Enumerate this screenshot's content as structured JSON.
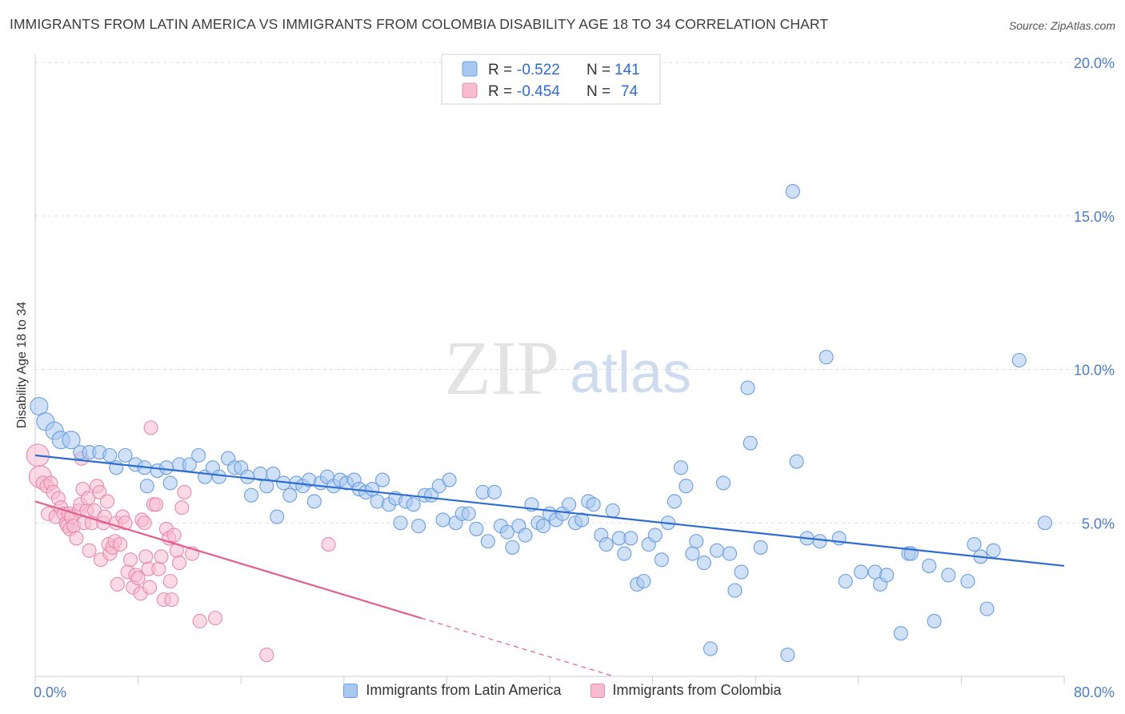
{
  "header": {
    "title": "IMMIGRANTS FROM LATIN AMERICA VS IMMIGRANTS FROM COLOMBIA DISABILITY AGE 18 TO 34 CORRELATION CHART",
    "source": "Source: ZipAtlas.com"
  },
  "watermark": {
    "zip": "ZIP",
    "atlas": "atlas"
  },
  "legend": {
    "rows": [
      {
        "r_label": "R =",
        "r_value": "-0.522",
        "n_label": "N =",
        "n_value": "141"
      },
      {
        "r_label": "R =",
        "r_value": "-0.454",
        "n_label": "N =",
        "n_value": "74"
      }
    ]
  },
  "colors": {
    "blue_fill": "#a9c8f0",
    "blue_stroke": "#6a9ee0",
    "blue_line": "#2f6cd0",
    "pink_fill": "#f7bcd0",
    "pink_stroke": "#e68aab",
    "pink_line": "#e0608a",
    "tick_text": "#4a7cc9",
    "grid": "#dddddd"
  },
  "chart_data": {
    "type": "scatter",
    "title": "IMMIGRANTS FROM LATIN AMERICA VS IMMIGRANTS FROM COLOMBIA DISABILITY AGE 18 TO 34 CORRELATION CHART",
    "xlabel": "",
    "ylabel": "Disability Age 18 to 34",
    "xlim": [
      0,
      80
    ],
    "ylim": [
      0,
      20
    ],
    "x_tick_labels": [
      "0.0%",
      "80.0%"
    ],
    "y_ticks": [
      5,
      10,
      15,
      20
    ],
    "y_tick_labels": [
      "5.0%",
      "10.0%",
      "15.0%",
      "20.0%"
    ],
    "grid": "horizontal dashed",
    "legend_position": "top-center",
    "series": [
      {
        "name": "Immigrants from Latin America",
        "color": "#a9c8f0",
        "R": -0.522,
        "N": 141,
        "trend": {
          "x": [
            0,
            80
          ],
          "y": [
            7.2,
            3.6
          ]
        },
        "points": [
          [
            0.3,
            8.8
          ],
          [
            0.8,
            8.3
          ],
          [
            1.5,
            8.0
          ],
          [
            2.0,
            7.7
          ],
          [
            2.8,
            7.7
          ],
          [
            3.5,
            7.3
          ],
          [
            4.2,
            7.3
          ],
          [
            5.0,
            7.3
          ],
          [
            5.8,
            7.2
          ],
          [
            6.3,
            6.8
          ],
          [
            7.0,
            7.2
          ],
          [
            7.8,
            6.9
          ],
          [
            8.5,
            6.8
          ],
          [
            8.7,
            6.2
          ],
          [
            9.5,
            6.7
          ],
          [
            10.2,
            6.8
          ],
          [
            10.5,
            6.3
          ],
          [
            11.2,
            6.9
          ],
          [
            12.0,
            6.9
          ],
          [
            12.7,
            7.2
          ],
          [
            13.2,
            6.5
          ],
          [
            13.8,
            6.8
          ],
          [
            14.3,
            6.5
          ],
          [
            15.0,
            7.1
          ],
          [
            15.5,
            6.8
          ],
          [
            16.0,
            6.8
          ],
          [
            16.5,
            6.5
          ],
          [
            16.8,
            5.9
          ],
          [
            17.5,
            6.6
          ],
          [
            18.0,
            6.2
          ],
          [
            18.5,
            6.6
          ],
          [
            18.8,
            5.2
          ],
          [
            19.3,
            6.3
          ],
          [
            19.8,
            5.9
          ],
          [
            20.3,
            6.3
          ],
          [
            20.8,
            6.2
          ],
          [
            21.3,
            6.4
          ],
          [
            21.7,
            5.7
          ],
          [
            22.2,
            6.3
          ],
          [
            22.7,
            6.5
          ],
          [
            23.2,
            6.2
          ],
          [
            23.7,
            6.4
          ],
          [
            24.2,
            6.3
          ],
          [
            24.8,
            6.4
          ],
          [
            25.2,
            6.1
          ],
          [
            25.7,
            6.0
          ],
          [
            26.2,
            6.1
          ],
          [
            26.6,
            5.7
          ],
          [
            27.0,
            6.4
          ],
          [
            27.5,
            5.6
          ],
          [
            28.0,
            5.8
          ],
          [
            28.4,
            5.0
          ],
          [
            28.8,
            5.7
          ],
          [
            29.4,
            5.6
          ],
          [
            29.8,
            4.9
          ],
          [
            30.3,
            5.9
          ],
          [
            30.8,
            5.9
          ],
          [
            31.4,
            6.2
          ],
          [
            31.7,
            5.1
          ],
          [
            32.2,
            6.4
          ],
          [
            32.7,
            5.0
          ],
          [
            33.2,
            5.3
          ],
          [
            33.7,
            5.3
          ],
          [
            34.3,
            4.8
          ],
          [
            34.8,
            6.0
          ],
          [
            35.2,
            4.4
          ],
          [
            35.7,
            6.0
          ],
          [
            36.2,
            4.9
          ],
          [
            36.7,
            4.7
          ],
          [
            37.1,
            4.2
          ],
          [
            37.6,
            4.9
          ],
          [
            38.1,
            4.6
          ],
          [
            38.6,
            5.6
          ],
          [
            39.1,
            5.0
          ],
          [
            39.5,
            4.9
          ],
          [
            40.0,
            5.3
          ],
          [
            40.5,
            5.1
          ],
          [
            41.0,
            5.3
          ],
          [
            41.5,
            5.6
          ],
          [
            42.0,
            5.0
          ],
          [
            42.5,
            5.1
          ],
          [
            43.0,
            5.7
          ],
          [
            43.4,
            5.6
          ],
          [
            44.0,
            4.6
          ],
          [
            44.4,
            4.3
          ],
          [
            44.9,
            5.4
          ],
          [
            45.4,
            4.5
          ],
          [
            45.8,
            4.0
          ],
          [
            46.3,
            4.5
          ],
          [
            46.8,
            3.0
          ],
          [
            47.3,
            3.1
          ],
          [
            47.7,
            4.3
          ],
          [
            48.2,
            4.6
          ],
          [
            48.7,
            3.8
          ],
          [
            49.2,
            5.0
          ],
          [
            49.7,
            5.7
          ],
          [
            50.2,
            6.8
          ],
          [
            50.6,
            6.2
          ],
          [
            51.1,
            4.0
          ],
          [
            51.4,
            4.4
          ],
          [
            52.0,
            3.7
          ],
          [
            52.5,
            0.9
          ],
          [
            53.0,
            4.1
          ],
          [
            53.5,
            6.3
          ],
          [
            54.0,
            4.0
          ],
          [
            54.4,
            2.8
          ],
          [
            54.9,
            3.4
          ],
          [
            55.4,
            9.4
          ],
          [
            55.6,
            7.6
          ],
          [
            56.4,
            4.2
          ],
          [
            58.5,
            0.7
          ],
          [
            58.9,
            15.8
          ],
          [
            59.2,
            7.0
          ],
          [
            60.0,
            4.5
          ],
          [
            61.0,
            4.4
          ],
          [
            61.5,
            10.4
          ],
          [
            62.5,
            4.5
          ],
          [
            63.0,
            3.1
          ],
          [
            64.2,
            3.4
          ],
          [
            65.3,
            3.4
          ],
          [
            65.7,
            3.0
          ],
          [
            66.2,
            3.3
          ],
          [
            67.3,
            1.4
          ],
          [
            67.9,
            4.0
          ],
          [
            68.1,
            4.0
          ],
          [
            69.5,
            3.6
          ],
          [
            69.9,
            1.8
          ],
          [
            71.0,
            3.3
          ],
          [
            72.5,
            3.1
          ],
          [
            73.0,
            4.3
          ],
          [
            73.5,
            3.9
          ],
          [
            74.0,
            2.2
          ],
          [
            74.5,
            4.1
          ],
          [
            76.5,
            10.3
          ],
          [
            78.5,
            5.0
          ]
        ]
      },
      {
        "name": "Immigrants from Colombia",
        "color": "#f7bcd0",
        "R": -0.454,
        "N": 74,
        "trend": {
          "x": [
            0,
            30
          ],
          "y": [
            5.7,
            1.9
          ]
        },
        "trend_dashed": {
          "x": [
            30,
            45
          ],
          "y": [
            1.9,
            0.0
          ]
        },
        "points": [
          [
            0.2,
            7.2
          ],
          [
            0.4,
            6.5
          ],
          [
            0.6,
            6.3
          ],
          [
            0.9,
            6.2
          ],
          [
            1.0,
            5.3
          ],
          [
            1.2,
            6.3
          ],
          [
            1.4,
            6.0
          ],
          [
            1.6,
            5.2
          ],
          [
            1.8,
            5.8
          ],
          [
            2.0,
            5.5
          ],
          [
            2.2,
            5.3
          ],
          [
            2.4,
            5.0
          ],
          [
            2.5,
            4.9
          ],
          [
            2.6,
            5.3
          ],
          [
            2.7,
            4.8
          ],
          [
            2.8,
            5.2
          ],
          [
            3.0,
            4.9
          ],
          [
            3.2,
            4.5
          ],
          [
            3.4,
            5.4
          ],
          [
            3.5,
            5.6
          ],
          [
            3.6,
            7.1
          ],
          [
            3.7,
            6.1
          ],
          [
            3.8,
            5.0
          ],
          [
            4.0,
            5.4
          ],
          [
            4.1,
            5.8
          ],
          [
            4.2,
            4.1
          ],
          [
            4.4,
            5.0
          ],
          [
            4.6,
            5.4
          ],
          [
            4.8,
            6.2
          ],
          [
            5.0,
            6.0
          ],
          [
            5.1,
            3.8
          ],
          [
            5.3,
            5.0
          ],
          [
            5.4,
            5.2
          ],
          [
            5.6,
            5.7
          ],
          [
            5.7,
            4.3
          ],
          [
            5.8,
            4.0
          ],
          [
            6.0,
            4.2
          ],
          [
            6.2,
            4.4
          ],
          [
            6.3,
            5.0
          ],
          [
            6.4,
            3.0
          ],
          [
            6.6,
            4.3
          ],
          [
            6.8,
            5.2
          ],
          [
            7.0,
            5.0
          ],
          [
            7.2,
            3.4
          ],
          [
            7.4,
            3.8
          ],
          [
            7.6,
            2.9
          ],
          [
            7.8,
            3.3
          ],
          [
            8.0,
            3.2
          ],
          [
            8.2,
            2.7
          ],
          [
            8.3,
            5.1
          ],
          [
            8.5,
            5.0
          ],
          [
            8.6,
            3.9
          ],
          [
            8.8,
            3.5
          ],
          [
            8.9,
            2.9
          ],
          [
            9.0,
            8.1
          ],
          [
            9.2,
            5.6
          ],
          [
            9.4,
            5.6
          ],
          [
            9.6,
            3.5
          ],
          [
            9.8,
            3.9
          ],
          [
            10.0,
            2.5
          ],
          [
            10.2,
            4.8
          ],
          [
            10.4,
            4.5
          ],
          [
            10.5,
            3.1
          ],
          [
            10.6,
            2.5
          ],
          [
            10.8,
            4.6
          ],
          [
            11.0,
            4.1
          ],
          [
            11.2,
            3.7
          ],
          [
            11.4,
            5.5
          ],
          [
            11.6,
            6.0
          ],
          [
            12.2,
            4.0
          ],
          [
            12.8,
            1.8
          ],
          [
            14.0,
            1.9
          ],
          [
            18.0,
            0.7
          ],
          [
            22.8,
            4.3
          ]
        ]
      }
    ]
  },
  "bottom_legend": {
    "items": [
      {
        "label": "Immigrants from Latin America"
      },
      {
        "label": "Immigrants from Colombia"
      }
    ]
  }
}
